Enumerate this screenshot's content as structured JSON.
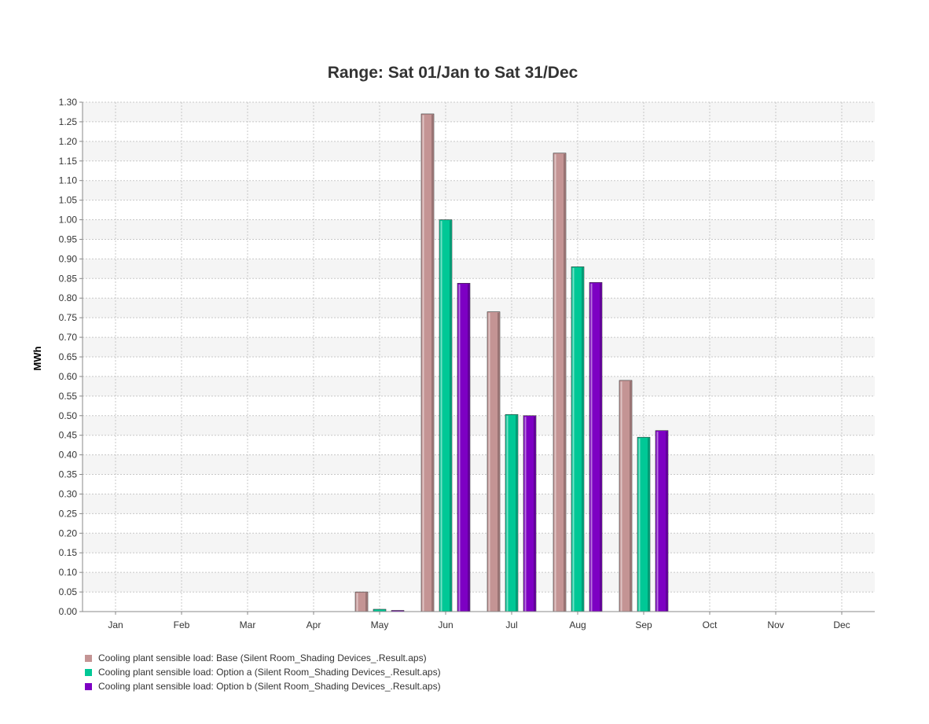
{
  "chart_data": {
    "type": "bar",
    "title": "Range: Sat 01/Jan to Sat 31/Dec",
    "xlabel": "",
    "ylabel": "MWh",
    "ylim": [
      0,
      1.3
    ],
    "yticks": [
      "0.00",
      "0.05",
      "0.10",
      "0.15",
      "0.20",
      "0.25",
      "0.30",
      "0.35",
      "0.40",
      "0.45",
      "0.50",
      "0.55",
      "0.60",
      "0.65",
      "0.70",
      "0.75",
      "0.80",
      "0.85",
      "0.90",
      "0.95",
      "1.00",
      "1.05",
      "1.10",
      "1.15",
      "1.20",
      "1.25",
      "1.30"
    ],
    "categories": [
      "Jan",
      "Feb",
      "Mar",
      "Apr",
      "May",
      "Jun",
      "Jul",
      "Aug",
      "Sep",
      "Oct",
      "Nov",
      "Dec"
    ],
    "grid": true,
    "legend_position": "bottom-left",
    "series": [
      {
        "name": "Cooling plant sensible load: Base (Silent Room_Shading Devices_.Result.aps)",
        "color": "#c49494",
        "values": [
          0,
          0,
          0,
          0,
          0.05,
          1.27,
          0.765,
          1.17,
          0.59,
          0,
          0,
          0
        ]
      },
      {
        "name": "Cooling plant sensible load: Option a (Silent Room_Shading Devices_.Result.aps)",
        "color": "#00c896",
        "values": [
          0,
          0,
          0,
          0,
          0.006,
          1.0,
          0.503,
          0.88,
          0.445,
          0,
          0,
          0
        ]
      },
      {
        "name": "Cooling plant sensible load: Option b (Silent Room_Shading Devices_.Result.aps)",
        "color": "#7d00c3",
        "values": [
          0,
          0,
          0,
          0,
          0.003,
          0.838,
          0.5,
          0.84,
          0.462,
          0,
          0,
          0
        ]
      }
    ]
  }
}
